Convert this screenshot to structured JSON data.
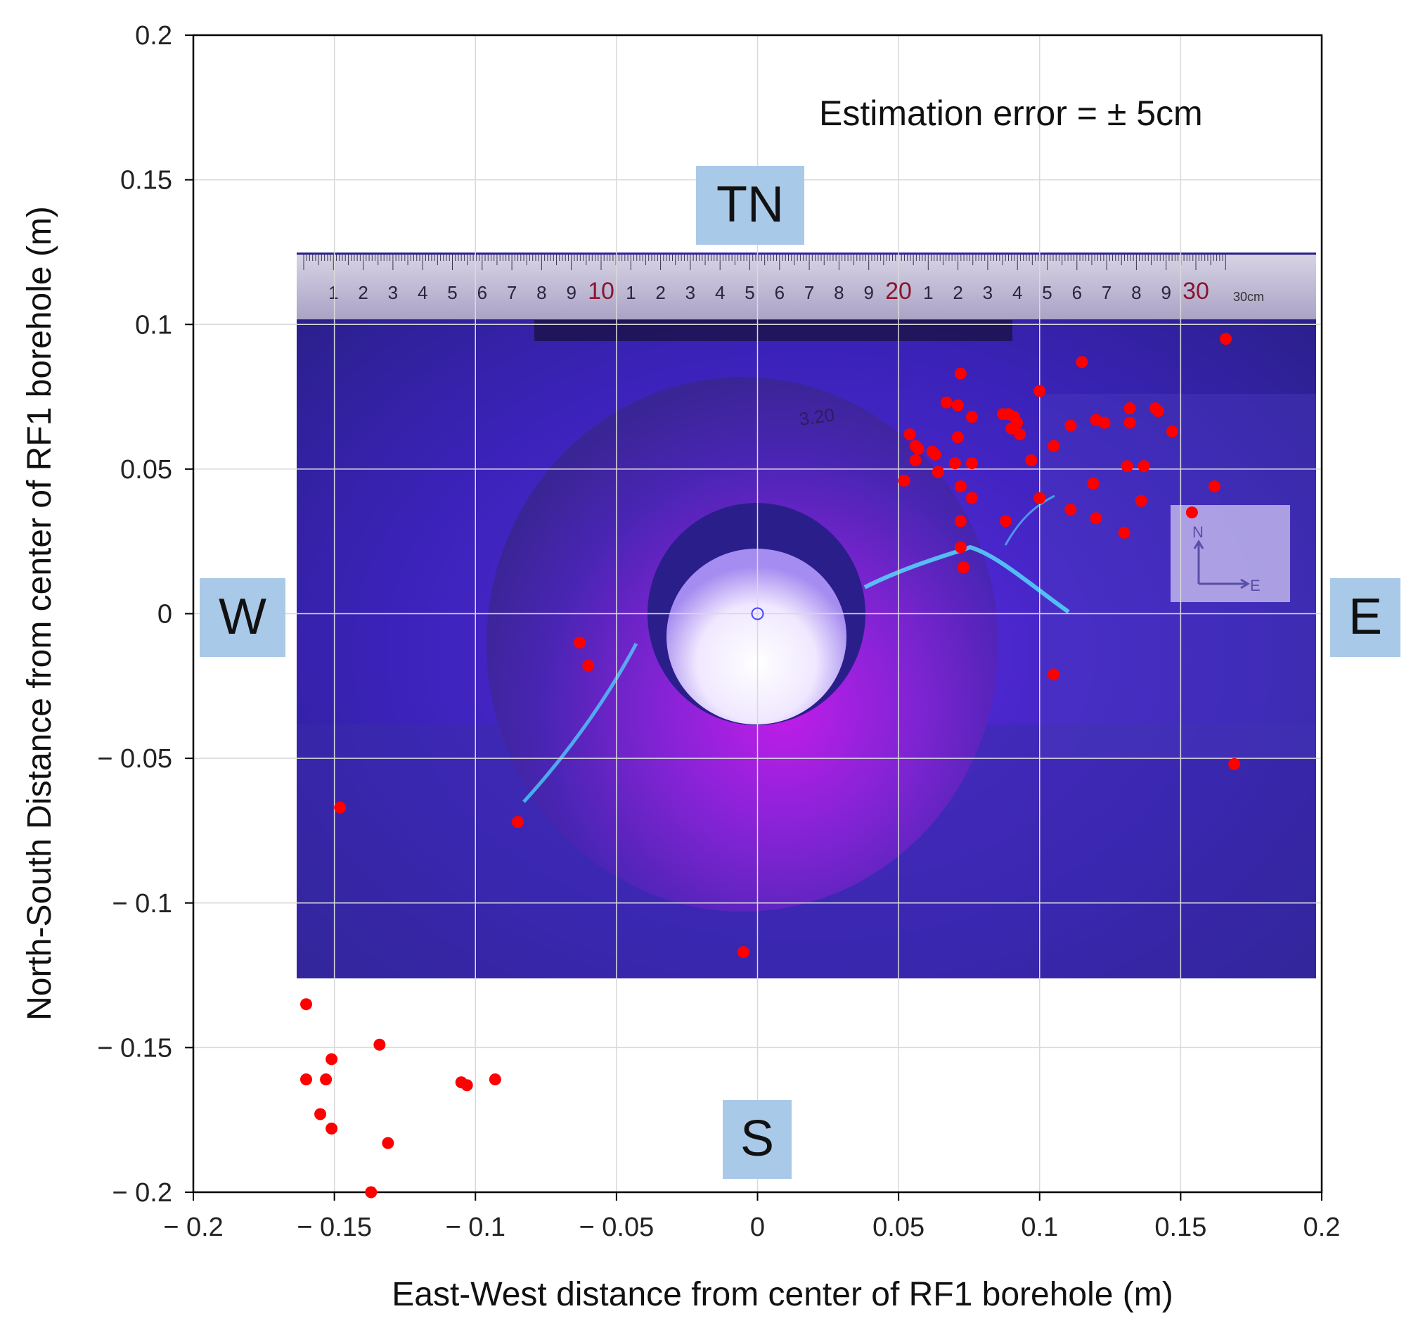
{
  "chart_data": {
    "type": "scatter",
    "xlabel": "East-West distance from center of RF1 borehole (m)",
    "ylabel": "North-South Distance from center of RF1 borehole (m)",
    "xlim": [
      -0.2,
      0.2
    ],
    "ylim": [
      -0.2,
      0.2
    ],
    "xticks": [
      -0.2,
      -0.15,
      -0.1,
      -0.05,
      0,
      0.05,
      0.1,
      0.15,
      0.2
    ],
    "yticks": [
      -0.2,
      -0.15,
      -0.1,
      -0.05,
      0,
      0.05,
      0.1,
      0.15,
      0.2
    ],
    "xtick_labels": [
      "− 0.2",
      "− 0.15",
      "− 0.1",
      "− 0.05",
      "0",
      "0.05",
      "0.1",
      "0.15",
      "0.2"
    ],
    "ytick_labels": [
      "− 0.2",
      "− 0.15",
      "− 0.1",
      "− 0.05",
      "0",
      "0.05",
      "0.1",
      "0.15",
      "0.2"
    ],
    "grid": true,
    "annotation": "Estimation error = ±  5cm",
    "direction_labels": {
      "north": "TN",
      "south": "S",
      "west": "W",
      "east": "E"
    },
    "background_image": "UV-illuminated rock core section with borehole, ruler and N/E compass card",
    "ruler_numbers": [
      "1",
      "2",
      "3",
      "4",
      "5",
      "6",
      "7",
      "8",
      "9",
      "10",
      "1",
      "2",
      "3",
      "4",
      "5",
      "6",
      "7",
      "8",
      "9",
      "20",
      "1",
      "2",
      "3",
      "4",
      "5",
      "6",
      "7",
      "8",
      "9",
      "30"
    ],
    "ruler_label": "30cm",
    "core_label": "3.20",
    "compass_labels": {
      "north": "N",
      "east": "E"
    },
    "borehole_center": [
      0,
      0
    ],
    "marker_color": "#ff0000",
    "center_marker_color": "#4444ff",
    "points": [
      [
        0.166,
        0.095
      ],
      [
        0.115,
        0.087
      ],
      [
        0.072,
        0.083
      ],
      [
        0.1,
        0.077
      ],
      [
        0.067,
        0.073
      ],
      [
        0.071,
        0.072
      ],
      [
        0.076,
        0.068
      ],
      [
        0.087,
        0.069
      ],
      [
        0.089,
        0.069
      ],
      [
        0.091,
        0.068
      ],
      [
        0.092,
        0.066
      ],
      [
        0.09,
        0.064
      ],
      [
        0.093,
        0.062
      ],
      [
        0.132,
        0.071
      ],
      [
        0.141,
        0.071
      ],
      [
        0.142,
        0.07
      ],
      [
        0.12,
        0.067
      ],
      [
        0.123,
        0.066
      ],
      [
        0.132,
        0.066
      ],
      [
        0.111,
        0.065
      ],
      [
        0.147,
        0.063
      ],
      [
        0.054,
        0.062
      ],
      [
        0.071,
        0.061
      ],
      [
        0.105,
        0.058
      ],
      [
        0.056,
        0.058
      ],
      [
        0.057,
        0.057
      ],
      [
        0.062,
        0.056
      ],
      [
        0.063,
        0.055
      ],
      [
        0.056,
        0.053
      ],
      [
        0.097,
        0.053
      ],
      [
        0.07,
        0.052
      ],
      [
        0.076,
        0.052
      ],
      [
        0.131,
        0.051
      ],
      [
        0.137,
        0.051
      ],
      [
        0.064,
        0.049
      ],
      [
        0.052,
        0.046
      ],
      [
        0.119,
        0.045
      ],
      [
        0.072,
        0.044
      ],
      [
        0.162,
        0.044
      ],
      [
        0.1,
        0.04
      ],
      [
        0.076,
        0.04
      ],
      [
        0.136,
        0.039
      ],
      [
        0.111,
        0.036
      ],
      [
        0.154,
        0.035
      ],
      [
        0.072,
        0.032
      ],
      [
        0.088,
        0.032
      ],
      [
        0.12,
        0.033
      ],
      [
        0.13,
        0.028
      ],
      [
        0.072,
        0.023
      ],
      [
        0.073,
        0.016
      ],
      [
        -0.063,
        -0.01
      ],
      [
        -0.06,
        -0.018
      ],
      [
        0.105,
        -0.021
      ],
      [
        0.169,
        -0.052
      ],
      [
        -0.148,
        -0.067
      ],
      [
        -0.085,
        -0.072
      ],
      [
        -0.005,
        -0.117
      ],
      [
        -0.16,
        -0.135
      ],
      [
        -0.134,
        -0.149
      ],
      [
        -0.151,
        -0.154
      ],
      [
        -0.16,
        -0.161
      ],
      [
        -0.153,
        -0.161
      ],
      [
        -0.105,
        -0.162
      ],
      [
        -0.103,
        -0.163
      ],
      [
        -0.093,
        -0.161
      ],
      [
        -0.155,
        -0.173
      ],
      [
        -0.151,
        -0.178
      ],
      [
        -0.131,
        -0.183
      ],
      [
        -0.137,
        -0.2
      ]
    ]
  }
}
